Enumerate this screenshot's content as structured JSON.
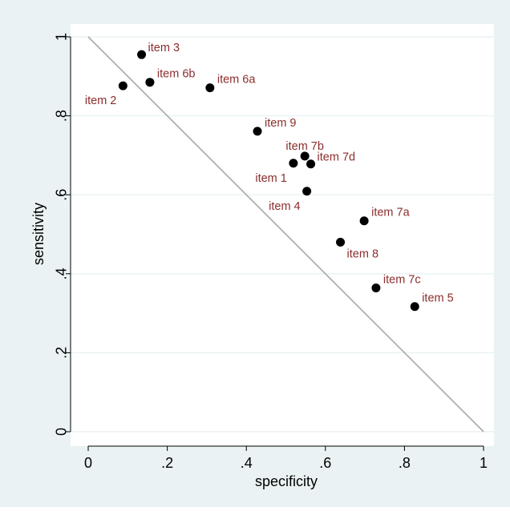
{
  "chart_data": {
    "type": "scatter",
    "title": "",
    "xlabel": "specificity",
    "ylabel": "sensitivity",
    "xlim": [
      0,
      1
    ],
    "ylim": [
      0,
      1
    ],
    "xticks": [
      0,
      0.2,
      0.4,
      0.6,
      0.8,
      1
    ],
    "xtick_labels": [
      "0",
      ".2",
      ".4",
      ".6",
      ".8",
      "1"
    ],
    "yticks": [
      0,
      0.2,
      0.4,
      0.6,
      0.8,
      1
    ],
    "ytick_labels": [
      "0",
      ".2",
      ".4",
      ".6",
      ".8",
      "1"
    ],
    "grid": true,
    "reference_line": {
      "from": [
        0,
        1
      ],
      "to": [
        1,
        0
      ]
    },
    "colors": {
      "outer_background": "#eaf2f3",
      "plot_background": "#ffffff",
      "gridline": "#eaf2f3",
      "reference_line": "#a8a8a8",
      "marker": "#000000",
      "point_label": "#8b2d2d"
    },
    "points": [
      {
        "label": "item 3",
        "x": 0.135,
        "y": 0.955,
        "label_position": "right"
      },
      {
        "label": "item 2",
        "x": 0.088,
        "y": 0.876,
        "label_position": "lower-left"
      },
      {
        "label": "item 6b",
        "x": 0.156,
        "y": 0.885,
        "label_position": "upper-right"
      },
      {
        "label": "item 6a",
        "x": 0.308,
        "y": 0.871,
        "label_position": "upper-right"
      },
      {
        "label": "item 9",
        "x": 0.428,
        "y": 0.761,
        "label_position": "upper-right"
      },
      {
        "label": "item 7b",
        "x": 0.548,
        "y": 0.698,
        "label_position": "above"
      },
      {
        "label": "item 1",
        "x": 0.519,
        "y": 0.68,
        "label_position": "lower-left"
      },
      {
        "label": "item 7d",
        "x": 0.563,
        "y": 0.678,
        "label_position": "right"
      },
      {
        "label": "item 4",
        "x": 0.553,
        "y": 0.609,
        "label_position": "lower-left"
      },
      {
        "label": "item 7a",
        "x": 0.698,
        "y": 0.534,
        "label_position": "upper-right"
      },
      {
        "label": "item 8",
        "x": 0.638,
        "y": 0.48,
        "label_position": "lower-right"
      },
      {
        "label": "item 7c",
        "x": 0.728,
        "y": 0.364,
        "label_position": "upper-right"
      },
      {
        "label": "item 5",
        "x": 0.826,
        "y": 0.317,
        "label_position": "upper-right"
      }
    ]
  }
}
